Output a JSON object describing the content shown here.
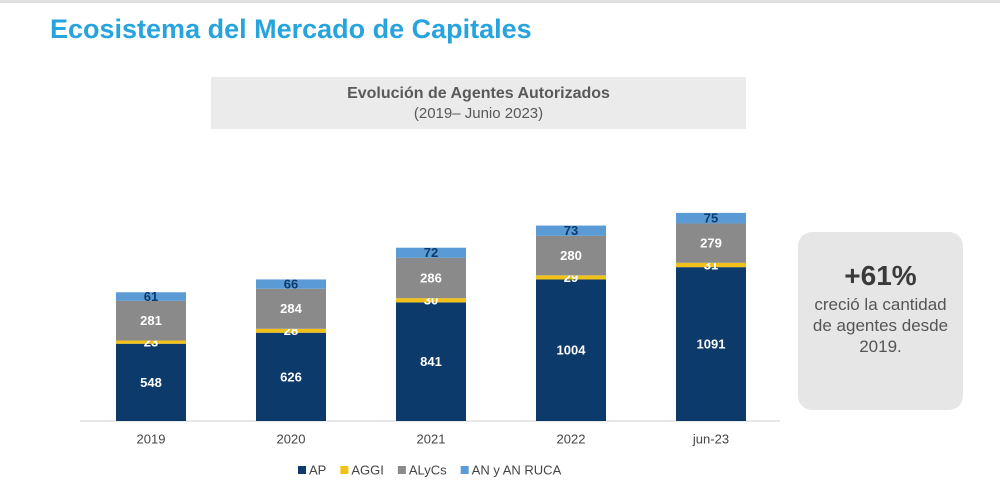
{
  "chart_data": {
    "type": "stacked_bar",
    "page_title": "Ecosistema del Mercado de Capitales",
    "title": "Evolución de Agentes Autorizados",
    "subtitle": "(2019– Junio 2023)",
    "categories": [
      "2019",
      "2020",
      "2021",
      "2022",
      "jun-23"
    ],
    "series": [
      {
        "name": "AP",
        "color": "#0b3a6b",
        "values": [
          548,
          626,
          841,
          1004,
          1091
        ]
      },
      {
        "name": "AGGI",
        "color": "#f2c118",
        "values": [
          23,
          28,
          30,
          29,
          31
        ]
      },
      {
        "name": "ALyCs",
        "color": "#8a8a8a",
        "values": [
          281,
          284,
          286,
          280,
          279
        ]
      },
      {
        "name": "AN y AN RUCA",
        "color": "#5b9bd5",
        "values": [
          61,
          66,
          72,
          73,
          75
        ]
      }
    ],
    "annotation": {
      "value": {
        "value": 61,
        "label": "+61%"
      },
      "text": "creció la cantidad de agentes desde 2019."
    }
  }
}
